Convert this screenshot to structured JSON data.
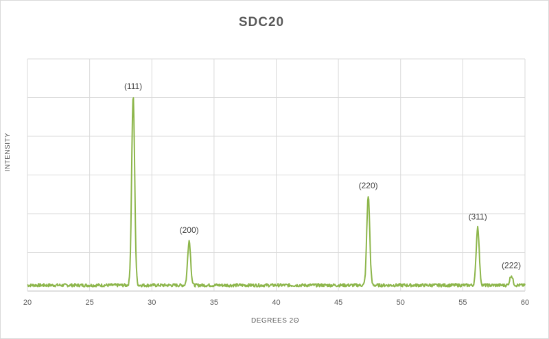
{
  "chart_data": {
    "type": "line",
    "title": "SDC20",
    "xlabel": "DEGREES 2Θ",
    "ylabel": "INTENSITY",
    "xlim": [
      20,
      60
    ],
    "ylim": [
      0,
      100
    ],
    "xticks": [
      20,
      25,
      30,
      35,
      40,
      45,
      50,
      55,
      60
    ],
    "grid": true,
    "legend": "none",
    "series_color": "#8db64b",
    "baseline": 3,
    "peaks": [
      {
        "label": "(111)",
        "x": 28.5,
        "y": 100
      },
      {
        "label": "(200)",
        "x": 33.0,
        "y": 26
      },
      {
        "label": "(220)",
        "x": 47.4,
        "y": 49
      },
      {
        "label": "(311)",
        "x": 56.2,
        "y": 33
      },
      {
        "label": "(222)",
        "x": 58.9,
        "y": 8
      }
    ]
  }
}
